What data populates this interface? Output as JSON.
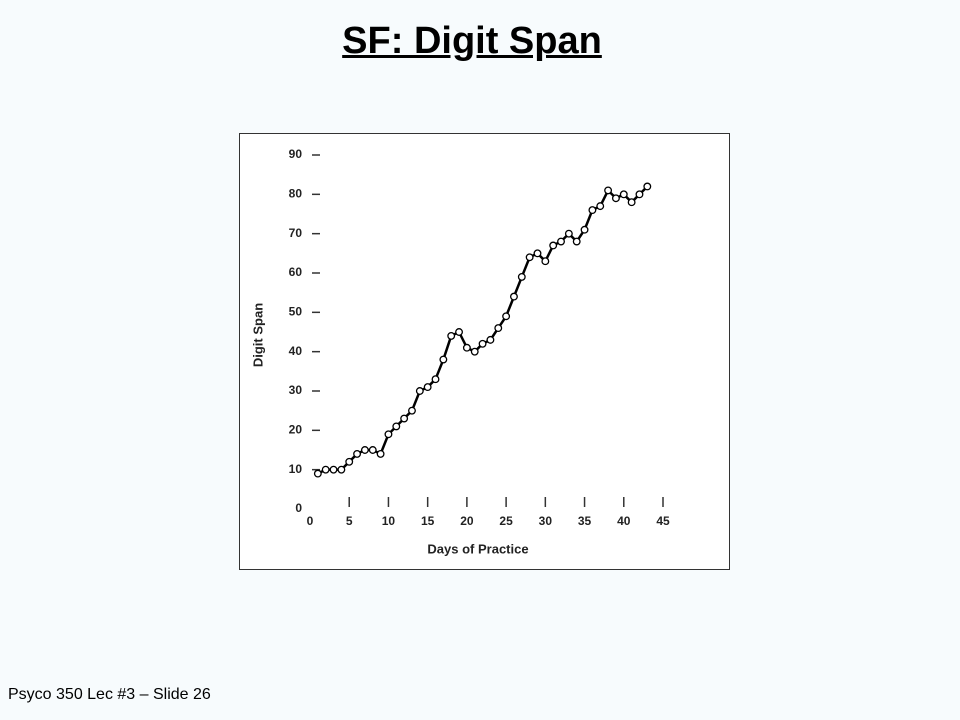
{
  "slide_title": "SF: Digit Span",
  "footer": "Psyco 350 Lec #3 – Slide 26",
  "chart_data": {
    "type": "line",
    "xlabel": "Days of Practice",
    "ylabel": "Digit Span",
    "x": [
      1,
      2,
      3,
      4,
      5,
      6,
      7,
      8,
      9,
      10,
      11,
      12,
      13,
      14,
      15,
      16,
      17,
      18,
      19,
      20,
      21,
      22,
      23,
      24,
      25,
      26,
      27,
      28,
      29,
      30,
      31,
      32,
      33,
      34,
      35,
      36,
      37,
      38,
      39,
      40,
      41,
      42,
      43
    ],
    "values": [
      9,
      10,
      10,
      10,
      12,
      14,
      15,
      15,
      14,
      19,
      21,
      23,
      25,
      30,
      31,
      33,
      38,
      44,
      45,
      41,
      40,
      42,
      43,
      46,
      49,
      54,
      59,
      64,
      65,
      63,
      67,
      68,
      70,
      68,
      71,
      76,
      77,
      81,
      79,
      80,
      78,
      80,
      82
    ],
    "color": "#000000",
    "xlim": [
      0,
      45
    ],
    "xticks": [
      0,
      5,
      10,
      15,
      20,
      25,
      30,
      35,
      40,
      45
    ],
    "ylim": [
      0,
      90
    ],
    "yticks": [
      0,
      10,
      20,
      30,
      40,
      50,
      60,
      70,
      80,
      90
    ]
  }
}
